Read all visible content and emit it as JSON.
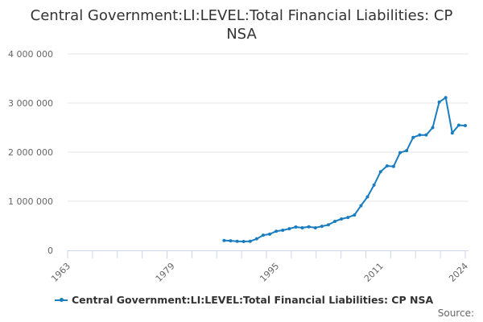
{
  "chart_data": {
    "type": "line",
    "title": "Central Government:LI:LEVEL:Total Financial Liabilities: CP NSA",
    "xlabel": "",
    "ylabel": "",
    "xlim": [
      1963,
      2024
    ],
    "ylim": [
      0,
      4000000
    ],
    "grid": true,
    "x_tick_labels": [
      "1963",
      "1979",
      "1995",
      "2011",
      "2024"
    ],
    "y_tick_labels": [
      "0",
      "1 000 000",
      "2 000 000",
      "3 000 000",
      "4 000 000"
    ],
    "legend": {
      "placement": "bottom",
      "entries": [
        "Central Government:LI:LEVEL:Total Financial Liabilities: CP NSA"
      ]
    },
    "series": [
      {
        "name": "Central Government:LI:LEVEL:Total Financial Liabilities: CP NSA",
        "color": "#1a7dc0",
        "x": [
          1987,
          1988,
          1989,
          1990,
          1991,
          1992,
          1993,
          1994,
          1995,
          1996,
          1997,
          1998,
          1999,
          2000,
          2001,
          2002,
          2003,
          2004,
          2005,
          2006,
          2007,
          2008,
          2009,
          2010,
          2011,
          2012,
          2013,
          2014,
          2015,
          2016,
          2017,
          2018,
          2019,
          2020,
          2021,
          2022,
          2023,
          2024
        ],
        "values": [
          200000,
          195000,
          185000,
          180000,
          185000,
          235000,
          310000,
          330000,
          390000,
          410000,
          440000,
          475000,
          460000,
          480000,
          460000,
          490000,
          520000,
          590000,
          640000,
          670000,
          720000,
          910000,
          1090000,
          1330000,
          1600000,
          1720000,
          1710000,
          1990000,
          2030000,
          2300000,
          2350000,
          2350000,
          2500000,
          3020000,
          3110000,
          2390000,
          2550000,
          2540000
        ]
      }
    ]
  },
  "source_label": "Source:"
}
